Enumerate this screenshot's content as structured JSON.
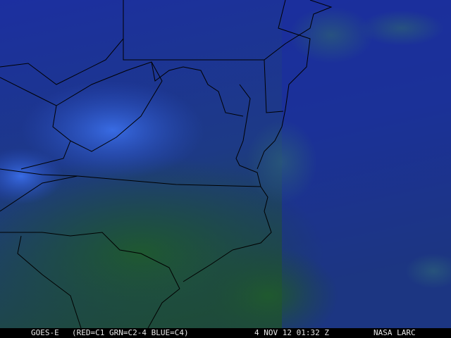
{
  "image": {
    "satellite": "GOES-E",
    "composite": "(RED=C1 GRN=C2-4 BLUE=C4)",
    "datetime": "4 NOV 12 01:32 Z",
    "credit": "NASA LARC"
  },
  "colors": {
    "ocean_clear": "#1b2f9a",
    "land_clear": "#1f4640",
    "cloud": "#2f5fd8",
    "boundaries": "#000000",
    "caption_bg": "#000000",
    "caption_text": "#e8e8e8"
  }
}
